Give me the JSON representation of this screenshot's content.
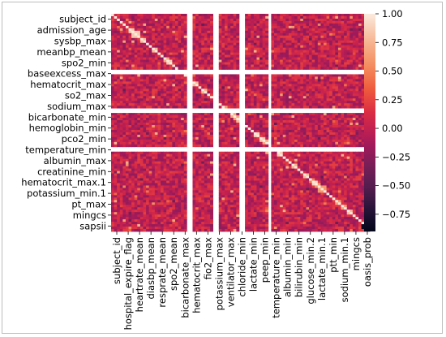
{
  "chart_data": {
    "type": "heatmap",
    "title": "",
    "xlabel": "",
    "ylabel": "",
    "y_tick_labels": [
      "subject_id",
      "admission_age",
      "sysbp_max",
      "meanbp_mean",
      "spo2_min",
      "baseexcess_max",
      "hematocrit_max",
      "so2_max",
      "sodium_max",
      "bicarbonate_min",
      "hemoglobin_min",
      "pco2_min",
      "temperature_min",
      "albumin_max",
      "creatinine_min",
      "hematocrit_max.1",
      "potassium_min.1",
      "pt_max",
      "mingcs",
      "sapsii"
    ],
    "x_tick_labels": [
      "subject_id",
      "hospital_expire_flag",
      "heartrate_mean",
      "diasbp_mean",
      "resprate_mean",
      "spo2_mean",
      "bicarbonate_max",
      "hematocrit_max",
      "fio2_max",
      "potassium_max",
      "ventilator_max",
      "chloride_min",
      "lactate_min",
      "peep_min",
      "temperature_min",
      "albumin_min",
      "bilirubin_min",
      "glucose_min.2",
      "lactate_min.1",
      "ptt_min",
      "sodium_min.1",
      "mingcs",
      "oasis_prob"
    ],
    "n_variables": 90,
    "diagonal_value": 1.0,
    "missing_rows": [
      23,
      24,
      39,
      40,
      55,
      56
    ],
    "missing_cols": [
      26,
      27,
      35,
      36,
      44,
      45,
      54
    ],
    "highlight_blocks": [
      {
        "rows": [
          7,
          9
        ],
        "cols": [
          7,
          9
        ],
        "value": 0.85
      },
      {
        "rows": [
          71,
          73
        ],
        "cols": [
          71,
          73
        ],
        "value": 0.6
      },
      {
        "rows": [
          86,
          88
        ],
        "cols": [
          86,
          88
        ],
        "value": -0.85
      }
    ],
    "colorbar": {
      "colormap": "rocket",
      "range": [
        -0.9,
        1.0
      ],
      "ticks": [
        "1.00",
        "0.75",
        "0.50",
        "0.25",
        "0.00",
        "−0.25",
        "−0.50",
        "−0.75"
      ],
      "tick_values": [
        1.0,
        0.75,
        0.5,
        0.25,
        0.0,
        -0.25,
        -0.5,
        -0.75
      ]
    },
    "grid": false,
    "legend": "right"
  }
}
